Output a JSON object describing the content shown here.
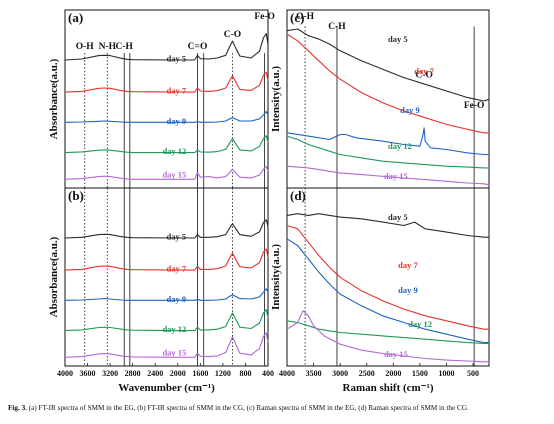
{
  "caption": {
    "bold": "Fig. 3.",
    "text": " (a) FT-IR spectra of SMM in the EG, (b) FT-IR spectra of SMM in the CG, (c) Raman spectra of SMM in the EG, (d) Raman spectra of SMM in the CG."
  },
  "colors": {
    "day 5": "#2a2a2a",
    "day 7": "#e8322b",
    "day 9": "#1f63c4",
    "day 12": "#1d9a5a",
    "day 15": "#b06ad6"
  },
  "chart_data": [
    {
      "type": "line",
      "panel": "(a)",
      "title": "",
      "xlabel": "",
      "ylabel": "Absorbance(a.u.)",
      "xlim": [
        4000,
        400
      ],
      "x_reversed": true,
      "x_ticks": [],
      "grid": false,
      "annotations": [
        {
          "text": "O-H",
          "x": 3650,
          "line": "dotted"
        },
        {
          "text": "N-H",
          "x": 3250,
          "line": "dotted"
        },
        {
          "text": "C-H",
          "x": 2950,
          "line": "solid"
        },
        {
          "text": "",
          "x": 2850,
          "line": "solid"
        },
        {
          "text": "C=O",
          "x": 1650,
          "line": "solid"
        },
        {
          "text": "",
          "x": 1540,
          "line": "solid"
        },
        {
          "text": "C-O",
          "x": 1030,
          "line": "dotted"
        },
        {
          "text": "Fe-O",
          "x": 460,
          "line": "solid"
        }
      ],
      "series": [
        {
          "name": "day 5",
          "x": [
            4000,
            3700,
            3400,
            3300,
            3200,
            3000,
            2900,
            2800,
            2000,
            1700,
            1650,
            1600,
            1450,
            1300,
            1150,
            1080,
            1030,
            980,
            900,
            700,
            550,
            480,
            430,
            400
          ],
          "y": [
            0.5,
            0.65,
            1.15,
            1.2,
            1.15,
            0.75,
            0.6,
            0.55,
            0.5,
            0.5,
            1.2,
            0.7,
            0.65,
            0.8,
            1.2,
            2.5,
            3.3,
            2.4,
            1.1,
            0.8,
            1.8,
            3.8,
            4.4,
            2.8
          ]
        },
        {
          "name": "day 7",
          "x": [
            4000,
            3700,
            3400,
            3300,
            3200,
            3000,
            2900,
            2800,
            2000,
            1700,
            1650,
            1600,
            1450,
            1300,
            1150,
            1080,
            1030,
            980,
            900,
            700,
            550,
            480,
            430,
            400
          ],
          "y": [
            0.5,
            0.6,
            1.05,
            1.1,
            1.05,
            0.7,
            0.6,
            0.55,
            0.5,
            0.5,
            1.1,
            0.65,
            0.6,
            0.7,
            1.1,
            2.2,
            2.9,
            2.1,
            0.9,
            0.75,
            1.5,
            3.0,
            3.4,
            2.2
          ]
        },
        {
          "name": "day 9",
          "x": [
            4000,
            3700,
            3400,
            3300,
            3200,
            3000,
            2900,
            2800,
            2000,
            1700,
            1650,
            1600,
            1450,
            1300,
            1150,
            1080,
            1030,
            980,
            900,
            700,
            550,
            480,
            430,
            400
          ],
          "y": [
            0.5,
            0.55,
            0.65,
            0.7,
            0.65,
            0.55,
            0.5,
            0.5,
            0.5,
            0.5,
            0.6,
            0.5,
            0.5,
            0.55,
            0.7,
            1.0,
            1.2,
            1.0,
            0.7,
            0.7,
            1.0,
            1.6,
            2.1,
            1.6
          ]
        },
        {
          "name": "day 12",
          "x": [
            4000,
            3700,
            3400,
            3300,
            3200,
            3000,
            2900,
            2800,
            2000,
            1700,
            1650,
            1600,
            1450,
            1300,
            1150,
            1080,
            1030,
            980,
            900,
            700,
            550,
            480,
            430,
            400
          ],
          "y": [
            0.5,
            0.6,
            0.85,
            0.9,
            0.85,
            0.65,
            0.55,
            0.5,
            0.5,
            0.5,
            0.9,
            0.6,
            0.55,
            0.65,
            1.0,
            1.9,
            2.6,
            1.9,
            0.9,
            0.75,
            1.4,
            2.6,
            3.0,
            2.0
          ]
        },
        {
          "name": "day 15",
          "x": [
            4000,
            3700,
            3400,
            3300,
            3200,
            3000,
            2900,
            2800,
            2000,
            1700,
            1650,
            1600,
            1450,
            1300,
            1150,
            1080,
            1030,
            980,
            900,
            700,
            550,
            480,
            430,
            400
          ],
          "y": [
            0.5,
            0.6,
            0.9,
            0.95,
            0.9,
            0.65,
            0.55,
            0.5,
            0.5,
            0.5,
            1.5,
            0.8,
            0.9,
            0.7,
            0.9,
            1.5,
            2.0,
            1.5,
            0.8,
            0.7,
            1.1,
            2.0,
            2.4,
            1.7
          ]
        }
      ]
    },
    {
      "type": "line",
      "panel": "(b)",
      "title": "",
      "xlabel": "Wavenumber (cm⁻¹)",
      "ylabel": "Absorbance(a.u.)",
      "xlim": [
        4000,
        400
      ],
      "x_reversed": true,
      "x_ticks": [
        4000,
        3600,
        3200,
        2800,
        2400,
        2000,
        1600,
        1200,
        800,
        400
      ],
      "grid": false,
      "annotations": [
        {
          "text": "",
          "x": 3650,
          "line": "dotted"
        },
        {
          "text": "",
          "x": 3250,
          "line": "dotted"
        },
        {
          "text": "",
          "x": 2950,
          "line": "solid"
        },
        {
          "text": "",
          "x": 2850,
          "line": "solid"
        },
        {
          "text": "",
          "x": 1650,
          "line": "solid"
        },
        {
          "text": "",
          "x": 1540,
          "line": "solid"
        },
        {
          "text": "",
          "x": 1030,
          "line": "dotted"
        },
        {
          "text": "",
          "x": 460,
          "line": "solid"
        }
      ],
      "series": [
        {
          "name": "day 5",
          "x": [
            4000,
            3700,
            3400,
            3300,
            3200,
            3000,
            2900,
            2800,
            2000,
            1700,
            1650,
            1600,
            1450,
            1300,
            1150,
            1080,
            1030,
            980,
            900,
            700,
            550,
            480,
            430,
            400
          ],
          "y": [
            0.5,
            0.6,
            1.0,
            1.05,
            1.0,
            0.7,
            0.6,
            0.55,
            0.5,
            0.5,
            1.0,
            0.6,
            0.6,
            0.7,
            1.0,
            2.0,
            2.6,
            2.0,
            1.0,
            0.75,
            1.4,
            2.8,
            3.2,
            2.2
          ]
        },
        {
          "name": "day 7",
          "x": [
            4000,
            3700,
            3400,
            3300,
            3200,
            3000,
            2900,
            2800,
            2000,
            1700,
            1650,
            1600,
            1450,
            1300,
            1150,
            1080,
            1030,
            980,
            900,
            700,
            550,
            480,
            430,
            400
          ],
          "y": [
            0.5,
            0.6,
            1.05,
            1.1,
            1.05,
            0.7,
            0.6,
            0.55,
            0.5,
            0.5,
            1.05,
            0.6,
            0.6,
            0.7,
            1.1,
            2.3,
            3.0,
            2.2,
            1.0,
            0.8,
            1.6,
            3.2,
            3.6,
            2.4
          ]
        },
        {
          "name": "day 9",
          "x": [
            4000,
            3700,
            3400,
            3300,
            3200,
            3000,
            2900,
            2800,
            2000,
            1700,
            1650,
            1600,
            1450,
            1300,
            1150,
            1080,
            1030,
            980,
            900,
            700,
            550,
            480,
            430,
            400
          ],
          "y": [
            0.5,
            0.55,
            0.7,
            0.75,
            0.7,
            0.55,
            0.5,
            0.5,
            0.5,
            0.5,
            0.65,
            0.5,
            0.5,
            0.55,
            0.7,
            1.1,
            1.3,
            1.1,
            0.75,
            0.7,
            1.0,
            1.7,
            2.2,
            1.7
          ]
        },
        {
          "name": "day 12",
          "x": [
            4000,
            3700,
            3400,
            3300,
            3200,
            3000,
            2900,
            2800,
            2000,
            1700,
            1650,
            1600,
            1450,
            1300,
            1150,
            1080,
            1030,
            980,
            900,
            700,
            550,
            480,
            430,
            400
          ],
          "y": [
            0.5,
            0.6,
            0.95,
            1.0,
            0.95,
            0.7,
            0.6,
            0.55,
            0.5,
            0.5,
            1.0,
            0.6,
            0.6,
            0.7,
            1.1,
            2.3,
            3.1,
            2.3,
            1.0,
            0.8,
            1.6,
            3.1,
            3.6,
            2.4
          ]
        },
        {
          "name": "day 15",
          "x": [
            4000,
            3700,
            3400,
            3300,
            3200,
            3000,
            2900,
            2800,
            2000,
            1700,
            1650,
            1600,
            1450,
            1300,
            1150,
            1080,
            1030,
            980,
            900,
            700,
            550,
            480,
            430,
            400
          ],
          "y": [
            0.5,
            0.6,
            1.0,
            1.05,
            1.0,
            0.7,
            0.6,
            0.55,
            0.5,
            0.5,
            1.1,
            0.65,
            0.6,
            0.7,
            1.2,
            2.6,
            3.5,
            2.6,
            1.1,
            0.85,
            1.8,
            3.6,
            4.1,
            2.7
          ]
        }
      ]
    },
    {
      "type": "line",
      "panel": "(c)",
      "title": "",
      "xlabel": "",
      "ylabel": "Intensity(a.u.)",
      "xlim": [
        4000,
        200
      ],
      "x_reversed": true,
      "x_ticks": [],
      "grid": false,
      "annotations": [
        {
          "text": "O-H",
          "x": 3660,
          "line": "dotted"
        },
        {
          "text": "C-H",
          "x": 3060,
          "line": "solid"
        },
        {
          "text": "C-O",
          "x": 1420,
          "line": "none"
        },
        {
          "text": "Fe-O",
          "x": 480,
          "line": "solid"
        }
      ],
      "series": [
        {
          "name": "day 5",
          "x": [
            4000,
            3800,
            3600,
            3400,
            3200,
            3000,
            2600,
            2200,
            1800,
            1400,
            1000,
            600,
            300,
            200
          ],
          "y": [
            9.4,
            9.5,
            9.1,
            8.9,
            8.6,
            8.2,
            7.6,
            7.1,
            6.6,
            6.2,
            5.8,
            5.4,
            5.2,
            5.3
          ]
        },
        {
          "name": "day 7",
          "x": [
            4000,
            3800,
            3600,
            3400,
            3200,
            3000,
            2600,
            2200,
            1800,
            1400,
            1000,
            600,
            300,
            200
          ],
          "y": [
            9.2,
            8.8,
            8.2,
            7.6,
            7.0,
            6.5,
            5.7,
            5.1,
            4.6,
            4.2,
            3.8,
            3.5,
            3.3,
            3.3
          ]
        },
        {
          "name": "day 9",
          "x": [
            4000,
            3600,
            3200,
            3000,
            2900,
            2700,
            2200,
            1800,
            1500,
            1440,
            1420,
            1400,
            1300,
            1000,
            600,
            300,
            200
          ],
          "y": [
            3.3,
            3.1,
            2.9,
            3.2,
            3.2,
            3.0,
            2.8,
            2.6,
            2.5,
            3.2,
            3.6,
            2.8,
            2.4,
            2.3,
            2.1,
            2.0,
            2.0
          ]
        },
        {
          "name": "day 12",
          "x": [
            4000,
            3800,
            3600,
            3400,
            3200,
            3000,
            2600,
            2200,
            1800,
            1400,
            1000,
            600,
            300,
            200
          ],
          "y": [
            3.1,
            2.9,
            2.6,
            2.4,
            2.2,
            2.0,
            1.8,
            1.6,
            1.5,
            1.4,
            1.3,
            1.25,
            1.2,
            1.2
          ]
        },
        {
          "name": "day 15",
          "x": [
            4000,
            3800,
            3600,
            3400,
            3200,
            3000,
            2600,
            2200,
            1800,
            1400,
            1000,
            600,
            300,
            200
          ],
          "y": [
            1.3,
            1.25,
            1.2,
            1.1,
            1.0,
            0.9,
            0.8,
            0.7,
            0.6,
            0.5,
            0.4,
            0.3,
            0.25,
            0.2
          ]
        }
      ]
    },
    {
      "type": "line",
      "panel": "(d)",
      "title": "",
      "xlabel": "Raman shift (cm⁻¹)",
      "ylabel": "Intensity(a.u.)",
      "xlim": [
        4000,
        200
      ],
      "x_reversed": true,
      "x_ticks": [
        4000,
        3500,
        3000,
        2500,
        2000,
        1500,
        1000,
        500
      ],
      "grid": false,
      "annotations": [
        {
          "text": "",
          "x": 3660,
          "line": "dotted"
        },
        {
          "text": "",
          "x": 3060,
          "line": "solid"
        },
        {
          "text": "",
          "x": 480,
          "line": "solid"
        }
      ],
      "series": [
        {
          "name": "day 5",
          "x": [
            4000,
            3800,
            3600,
            3400,
            3200,
            3000,
            2600,
            2200,
            1800,
            1600,
            1400,
            1000,
            600,
            300,
            200
          ],
          "y": [
            9.0,
            9.1,
            9.0,
            9.1,
            9.0,
            8.9,
            8.8,
            8.6,
            8.4,
            8.6,
            8.2,
            8.0,
            7.8,
            7.7,
            7.7
          ]
        },
        {
          "name": "day 7",
          "x": [
            4000,
            3800,
            3600,
            3400,
            3200,
            3000,
            2600,
            2200,
            1800,
            1400,
            1000,
            600,
            300,
            200
          ],
          "y": [
            8.4,
            8.2,
            7.4,
            6.6,
            5.9,
            5.3,
            4.5,
            3.9,
            3.4,
            3.0,
            2.7,
            2.4,
            2.2,
            2.2
          ]
        },
        {
          "name": "day 9",
          "x": [
            4000,
            3800,
            3600,
            3400,
            3200,
            3000,
            2600,
            2200,
            1800,
            1400,
            1000,
            600,
            300,
            200
          ],
          "y": [
            7.6,
            7.2,
            6.4,
            5.6,
            4.9,
            4.3,
            3.6,
            3.0,
            2.6,
            2.2,
            1.9,
            1.6,
            1.4,
            1.4
          ]
        },
        {
          "name": "day 12",
          "x": [
            4000,
            3800,
            3600,
            3400,
            3200,
            3000,
            2600,
            2200,
            1800,
            1400,
            1000,
            600,
            300,
            200
          ],
          "y": [
            2.7,
            2.6,
            2.4,
            2.2,
            2.1,
            2.0,
            1.9,
            1.8,
            1.7,
            1.6,
            1.5,
            1.4,
            1.35,
            1.35
          ]
        },
        {
          "name": "day 15",
          "x": [
            4000,
            3800,
            3700,
            3600,
            3500,
            3300,
            3000,
            2600,
            2200,
            1800,
            1400,
            1000,
            600,
            300,
            200
          ],
          "y": [
            2.2,
            2.6,
            3.3,
            3.0,
            2.4,
            1.8,
            1.3,
            0.95,
            0.75,
            0.6,
            0.45,
            0.35,
            0.3,
            0.25,
            0.25
          ]
        }
      ]
    }
  ]
}
